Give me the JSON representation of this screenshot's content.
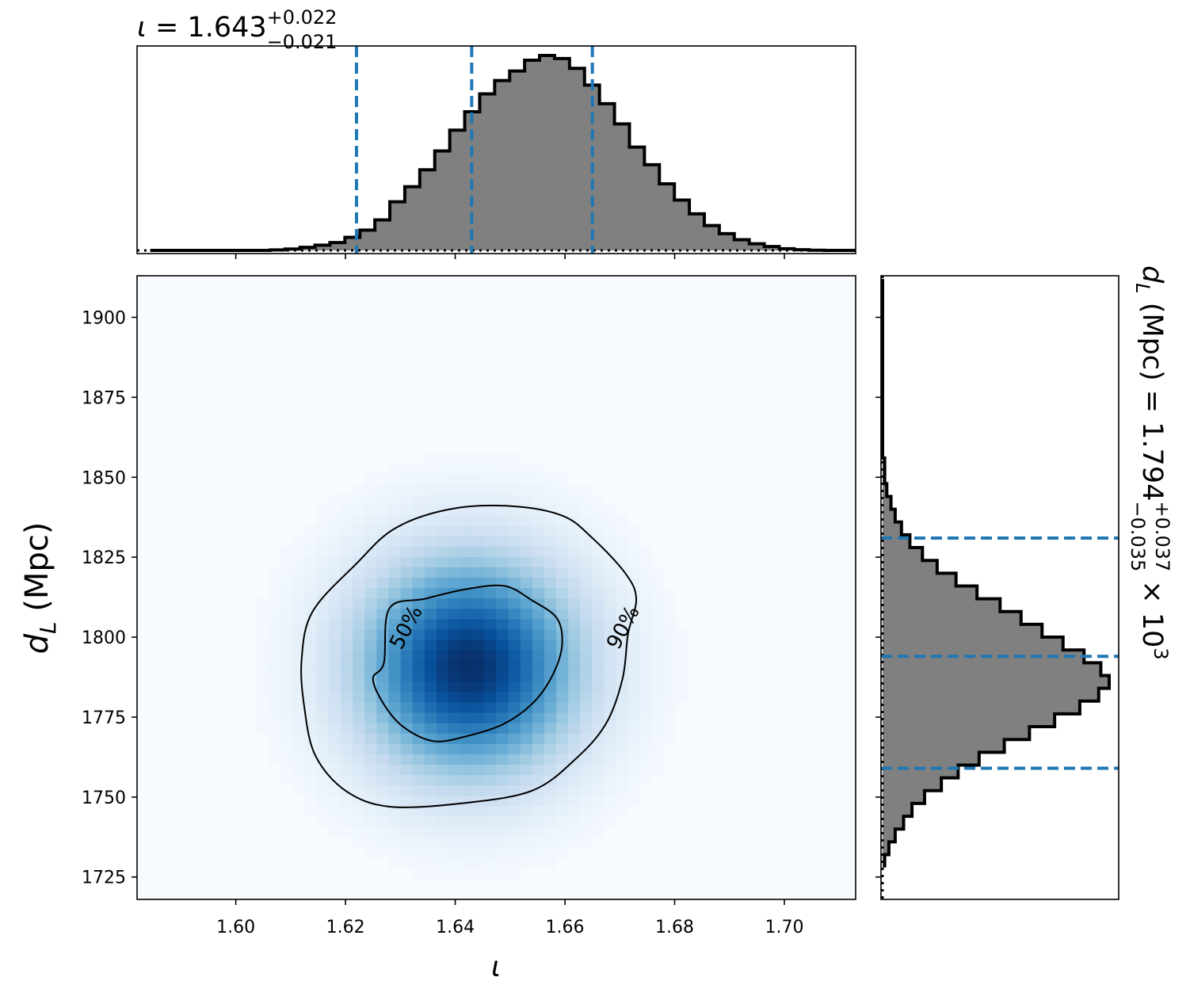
{
  "chart_data": [
    {
      "panel": "top-marginal",
      "type": "histogram",
      "title_parts": {
        "symbol": "ι",
        "eq": " = ",
        "value": "1.643",
        "plus": "+0.022",
        "minus": "−0.021"
      },
      "x_range": [
        1.582,
        1.713
      ],
      "x_ticks": [
        1.6,
        1.62,
        1.64,
        1.66,
        1.68,
        1.7
      ],
      "bin_edges_start": 1.5844,
      "bin_width": 0.00273,
      "counts": [
        0,
        0,
        0,
        0,
        0,
        0,
        0,
        0,
        0.2,
        0.6,
        1.3,
        2.2,
        3.3,
        5.5,
        8.5,
        12.8,
        20.4,
        26.7,
        33.8,
        41.7,
        50.4,
        58.1,
        65.6,
        71.2,
        75.2,
        79.7,
        81.7,
        80.4,
        76.3,
        69.3,
        61.5,
        53.0,
        43.3,
        35.9,
        27.9,
        21.1,
        15.3,
        10.4,
        7.0,
        4.5,
        2.8,
        1.6,
        0.7,
        0.3,
        0.1,
        0,
        0,
        0
      ],
      "median": 1.643,
      "lower": 1.622,
      "upper": 1.665,
      "colors": {
        "fill": "#808080",
        "edge": "#000000",
        "quantile_line": "#1f77b4"
      }
    },
    {
      "panel": "joint-density",
      "type": "heatmap",
      "x_range": [
        1.582,
        1.713
      ],
      "y_range": [
        1718,
        1913
      ],
      "x_ticks": [
        "1.60",
        "1.62",
        "1.64",
        "1.66",
        "1.68",
        "1.70"
      ],
      "y_ticks": [
        "1725",
        "1750",
        "1775",
        "1800",
        "1825",
        "1850",
        "1875",
        "1900"
      ],
      "xlabel": "ι",
      "ylabel_parts": {
        "symbol": "d",
        "sub": "L",
        "unit": " (Mpc)"
      },
      "center": [
        1.6425,
        1791
      ],
      "sigma": [
        0.013,
        22
      ],
      "contour_labels": [
        "50%",
        "90%"
      ],
      "contour_50": [
        [
          1.628,
          1809
        ],
        [
          1.6345,
          1812
        ],
        [
          1.642,
          1815
        ],
        [
          1.649,
          1816
        ],
        [
          1.654,
          1811.5
        ],
        [
          1.6585,
          1806
        ],
        [
          1.6595,
          1798
        ],
        [
          1.658,
          1789
        ],
        [
          1.6545,
          1780
        ],
        [
          1.649,
          1773
        ],
        [
          1.642,
          1769
        ],
        [
          1.636,
          1767.5
        ],
        [
          1.6305,
          1772
        ],
        [
          1.627,
          1779
        ],
        [
          1.625,
          1787
        ],
        [
          1.627,
          1792
        ]
      ],
      "contour_90": [
        [
          1.622,
          1823
        ],
        [
          1.629,
          1834
        ],
        [
          1.639,
          1840
        ],
        [
          1.65,
          1841
        ],
        [
          1.6595,
          1838
        ],
        [
          1.665,
          1831
        ],
        [
          1.671,
          1820
        ],
        [
          1.673,
          1812
        ],
        [
          1.6715,
          1801
        ],
        [
          1.6705,
          1787
        ],
        [
          1.6675,
          1773
        ],
        [
          1.662,
          1762
        ],
        [
          1.654,
          1752
        ],
        [
          1.641,
          1748
        ],
        [
          1.628,
          1747
        ],
        [
          1.62,
          1752
        ],
        [
          1.6145,
          1763
        ],
        [
          1.6125,
          1778
        ],
        [
          1.612,
          1793
        ],
        [
          1.614,
          1808
        ]
      ],
      "colormap": "Blues"
    },
    {
      "panel": "right-marginal",
      "type": "histogram",
      "orientation": "horizontal",
      "title_parts": {
        "symbol": "d",
        "sub": "L",
        "unit_eq": " (Mpc) = ",
        "value": "1.794",
        "plus": "+0.037",
        "minus": "−0.035",
        "times": " × 10",
        "exp": "3"
      },
      "y_range": [
        1718,
        1913
      ],
      "y_ticks": [
        1725,
        1750,
        1775,
        1800,
        1825,
        1850,
        1875,
        1900
      ],
      "bin_edges_start": 1728,
      "bin_width": 4.0,
      "counts": [
        1,
        3,
        6,
        10,
        14,
        20,
        28,
        36,
        46,
        58,
        70,
        82,
        94,
        103,
        108,
        104,
        96,
        86,
        76,
        66,
        56,
        45,
        35,
        26,
        19,
        13,
        9,
        6,
        4,
        2,
        1,
        1,
        0,
        0,
        0,
        0,
        0,
        0,
        0,
        0,
        0,
        0,
        0,
        0,
        0,
        0
      ],
      "median": 1794,
      "lower": 1759,
      "upper": 1831,
      "colors": {
        "fill": "#808080",
        "edge": "#000000",
        "quantile_line": "#1f77b4"
      }
    }
  ]
}
